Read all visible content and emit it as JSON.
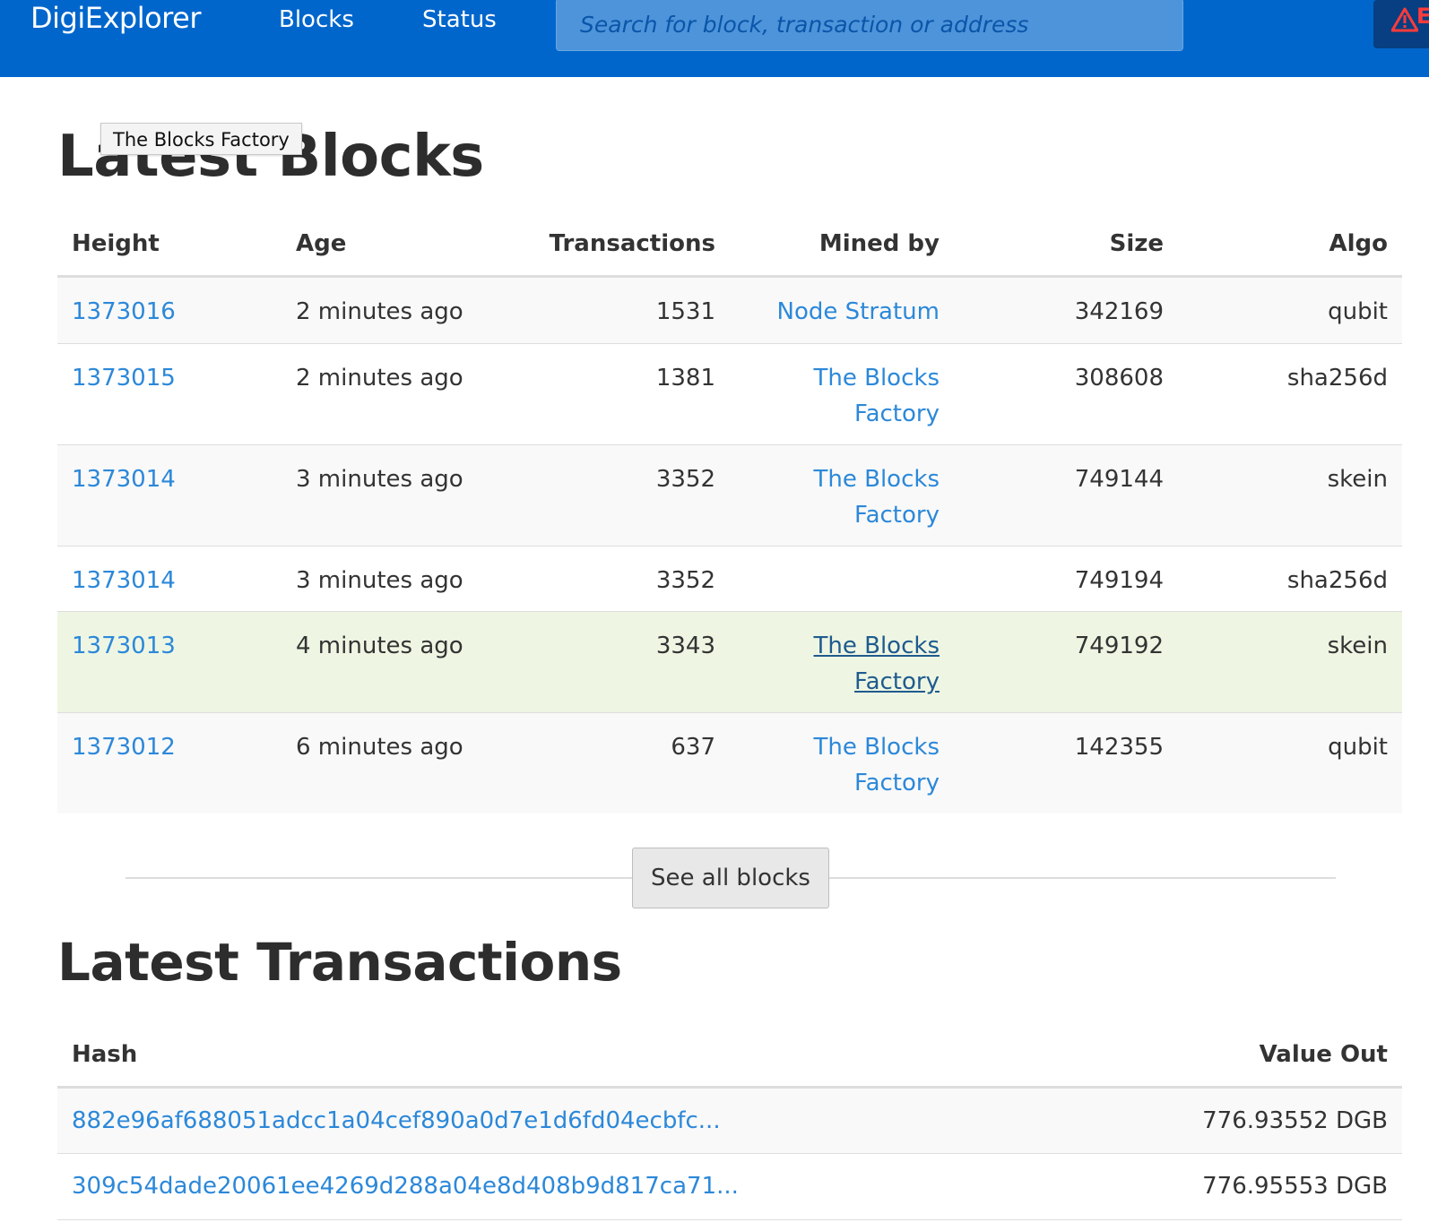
{
  "navbar": {
    "brand": "DigiExplorer",
    "links": [
      "Blocks",
      "Status"
    ],
    "search_placeholder": "Search for block, transaction or address",
    "alert_text": "E"
  },
  "tooltip": "The Blocks Factory",
  "latest_blocks": {
    "title": "Latest Blocks",
    "columns": [
      "Height",
      "Age",
      "Transactions",
      "Mined by",
      "Size",
      "Algo"
    ],
    "rows": [
      {
        "height": "1373016",
        "age": "2 minutes ago",
        "transactions": "1531",
        "mined_by": "Node Stratum",
        "size": "342169",
        "algo": "qubit"
      },
      {
        "height": "1373015",
        "age": "2 minutes ago",
        "transactions": "1381",
        "mined_by": "The Blocks Factory",
        "size": "308608",
        "algo": "sha256d"
      },
      {
        "height": "1373014",
        "age": "3 minutes ago",
        "transactions": "3352",
        "mined_by": "The Blocks Factory",
        "size": "749144",
        "algo": "skein"
      },
      {
        "height": "1373014",
        "age": "3 minutes ago",
        "transactions": "3352",
        "mined_by": "",
        "size": "749194",
        "algo": "sha256d"
      },
      {
        "height": "1373013",
        "age": "4 minutes ago",
        "transactions": "3343",
        "mined_by": "The Blocks Factory",
        "size": "749192",
        "algo": "skein"
      },
      {
        "height": "1373012",
        "age": "6 minutes ago",
        "transactions": "637",
        "mined_by": "The Blocks Factory",
        "size": "142355",
        "algo": "qubit"
      }
    ],
    "see_all_label": "See all blocks"
  },
  "latest_transactions": {
    "title": "Latest Transactions",
    "columns": [
      "Hash",
      "Value Out"
    ],
    "rows": [
      {
        "hash": "882e96af688051adcc1a04cef890a0d7e1d6fd04ecbfc...",
        "value_out": "776.93552 DGB"
      },
      {
        "hash": "309c54dade20061ee4269d288a04e8d408b9d817ca71...",
        "value_out": "776.95553 DGB"
      }
    ]
  },
  "colors": {
    "navbar": "#0066cc",
    "link": "#2c88d9",
    "hover_row": "#eef6e3",
    "alert": "#ff3b3b"
  }
}
